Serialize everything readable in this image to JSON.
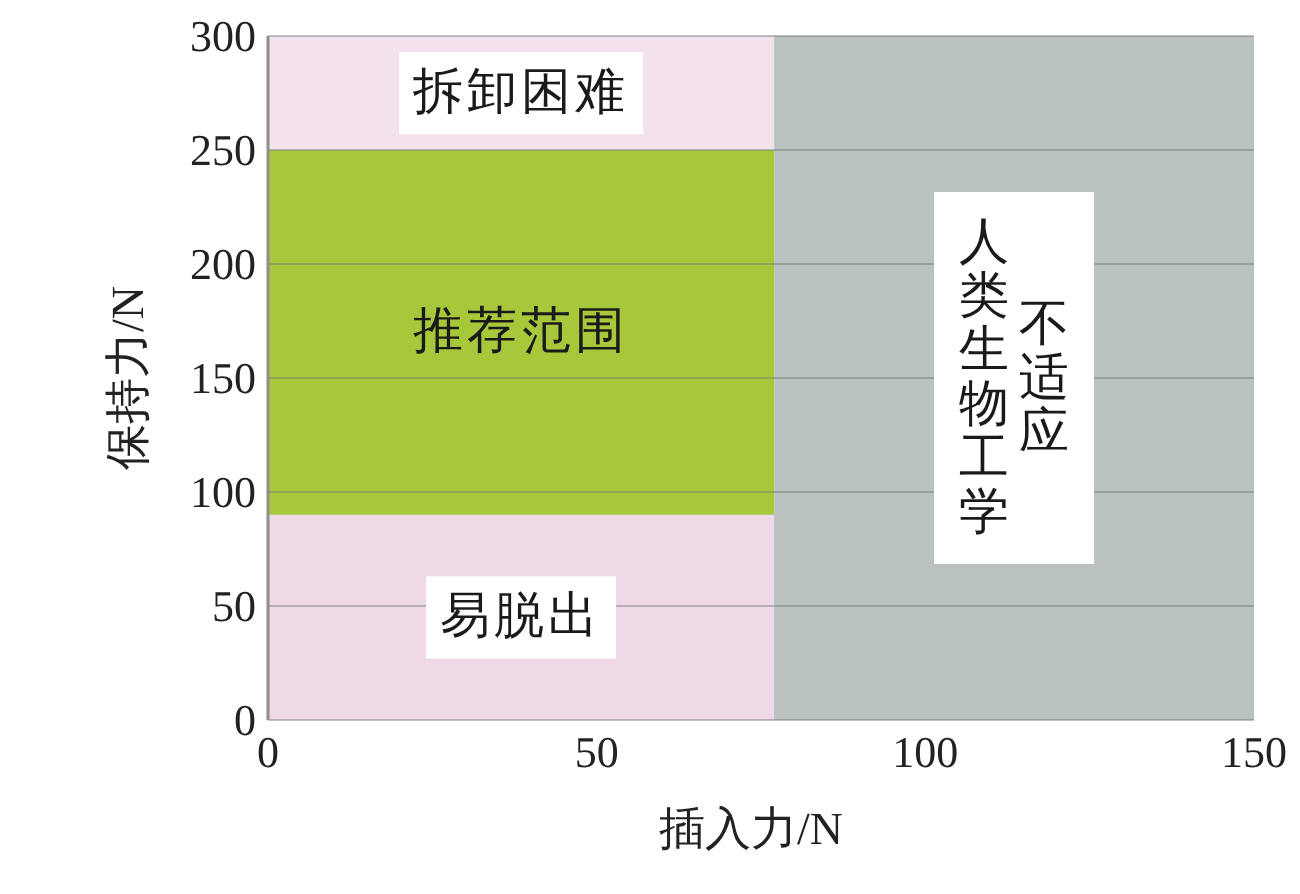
{
  "chart_data": {
    "type": "area",
    "xlabel": "插入力/N",
    "ylabel": "保持力/N",
    "xlim": [
      0,
      150
    ],
    "ylim": [
      0,
      300
    ],
    "xticks": [
      0,
      50,
      100,
      150
    ],
    "yticks": [
      0,
      50,
      100,
      150,
      200,
      250,
      300
    ],
    "grid": "y",
    "series": [
      {
        "name": "拆卸困难",
        "color": "#f2e2ec",
        "x": [
          0,
          77
        ],
        "values": [
          300,
          300
        ]
      },
      {
        "name": "推荐范围",
        "color": "#a8c83b",
        "x": [
          0,
          77
        ],
        "values": [
          250,
          250
        ]
      },
      {
        "name": "易脱出",
        "color": "#efd9e7",
        "x": [
          0,
          77
        ],
        "values": [
          90,
          90
        ]
      },
      {
        "name": "不适应人类生物工学",
        "color": "#b9c2bf",
        "x": [
          77,
          150
        ],
        "values": [
          300,
          300
        ]
      }
    ]
  }
}
